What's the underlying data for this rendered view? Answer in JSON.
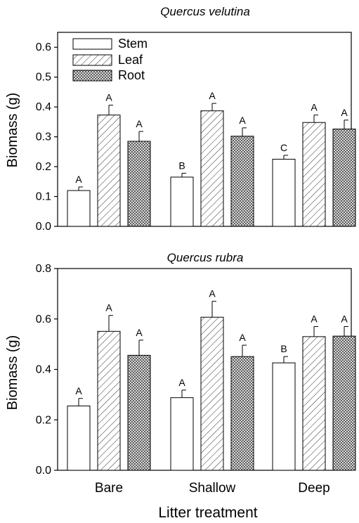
{
  "chart_data": [
    {
      "type": "bar",
      "title": "Quercus velutina",
      "xlabel": "",
      "ylabel": "Biomass (g)",
      "ylim": [
        0,
        0.65
      ],
      "yticks": [
        "0.0",
        "0.1",
        "0.2",
        "0.3",
        "0.4",
        "0.5",
        "0.6"
      ],
      "categories": [
        "Bare",
        "Shallow",
        "Deep"
      ],
      "legend": "top-left",
      "series": [
        {
          "name": "Stem",
          "pattern": "none",
          "values": [
            0.12,
            0.165,
            0.225
          ],
          "errors": [
            0.012,
            0.013,
            0.013
          ],
          "letters": [
            "A",
            "B",
            "C"
          ]
        },
        {
          "name": "Leaf",
          "pattern": "hatch",
          "values": [
            0.373,
            0.387,
            0.348
          ],
          "errors": [
            0.033,
            0.025,
            0.025
          ],
          "letters": [
            "A",
            "A",
            "A"
          ]
        },
        {
          "name": "Root",
          "pattern": "crosshatch",
          "values": [
            0.285,
            0.302,
            0.326
          ],
          "errors": [
            0.033,
            0.028,
            0.03
          ],
          "letters": [
            "A",
            "A",
            "A"
          ]
        }
      ]
    },
    {
      "type": "bar",
      "title": "Quercus rubra",
      "xlabel": "Litter treatment",
      "ylabel": "Biomass (g)",
      "ylim": [
        0,
        0.8
      ],
      "yticks": [
        "0.0",
        "0.2",
        "0.4",
        "0.6",
        "0.8"
      ],
      "categories": [
        "Bare",
        "Shallow",
        "Deep"
      ],
      "series": [
        {
          "name": "Stem",
          "pattern": "none",
          "values": [
            0.255,
            0.288,
            0.426
          ],
          "errors": [
            0.03,
            0.03,
            0.025
          ],
          "letters": [
            "A",
            "A",
            "B"
          ]
        },
        {
          "name": "Leaf",
          "pattern": "hatch",
          "values": [
            0.551,
            0.607,
            0.53
          ],
          "errors": [
            0.063,
            0.063,
            0.04
          ],
          "letters": [
            "A",
            "A",
            "A"
          ]
        },
        {
          "name": "Root",
          "pattern": "crosshatch",
          "values": [
            0.456,
            0.451,
            0.532
          ],
          "errors": [
            0.06,
            0.045,
            0.038
          ],
          "letters": [
            "A",
            "A",
            "A"
          ]
        }
      ]
    }
  ]
}
